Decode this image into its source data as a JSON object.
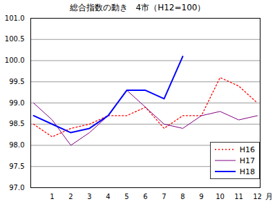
{
  "chart_data": {
    "type": "line",
    "title": "総合指数の動き　4市（H12=100）",
    "x_label": "月",
    "categories": [
      null,
      "1",
      "2",
      "3",
      "4",
      "5",
      "6",
      "7",
      "8",
      "9",
      "10",
      "11",
      "12"
    ],
    "series": [
      {
        "name": "H16",
        "color": "#ff0000",
        "line_style": "dotted",
        "values": [
          98.5,
          98.2,
          98.4,
          98.5,
          98.7,
          98.7,
          98.9,
          98.4,
          98.7,
          98.7,
          99.6,
          99.4,
          99.0
        ]
      },
      {
        "name": "H17",
        "color": "#800080",
        "line_style": "solid",
        "values": [
          99.0,
          98.6,
          98.0,
          98.3,
          98.7,
          99.3,
          98.9,
          98.5,
          98.4,
          98.7,
          98.8,
          98.6,
          98.7
        ]
      },
      {
        "name": "H18",
        "color": "#0000ff",
        "line_style": "solid",
        "values": [
          98.7,
          98.5,
          98.3,
          98.4,
          98.7,
          99.3,
          99.3,
          99.1,
          100.1,
          null,
          null,
          null,
          null
        ]
      }
    ],
    "ylim": [
      97,
      101
    ],
    "yticks": [
      {
        "value": 97,
        "label": "97.0"
      },
      97.5,
      {
        "value": 98,
        "label": "98.0"
      },
      98.5,
      {
        "value": 99,
        "label": "99.0"
      },
      99.5,
      {
        "value": 100,
        "label": "100.0"
      },
      100.5,
      {
        "value": 101,
        "label": "101.0"
      }
    ],
    "grid": true,
    "legend": "bottom-right"
  }
}
